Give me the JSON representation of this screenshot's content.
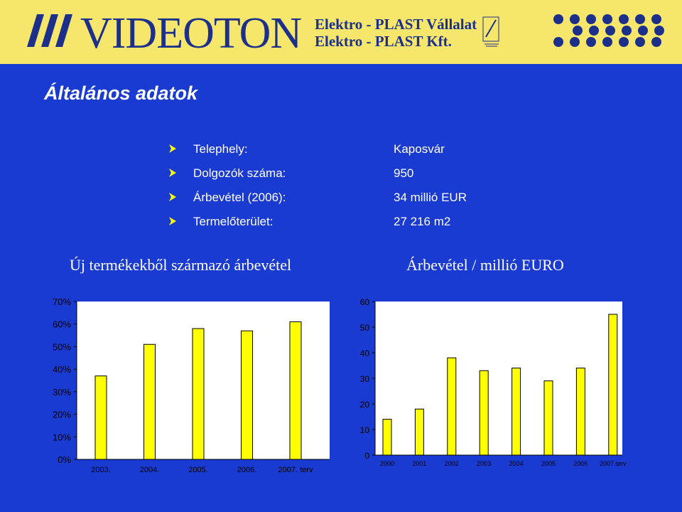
{
  "header": {
    "logo": "VIDEOTON",
    "company_line1": "Elektro - PLAST Vállalat",
    "company_line2": "Elektro - PLAST Kft.",
    "background_color": "#f6e76c",
    "logo_color": "#1c2f8a"
  },
  "page": {
    "title": "Általános adatok",
    "background_color": "#1a3bd1"
  },
  "facts": [
    {
      "label": "Telephely:",
      "value": "Kaposvár"
    },
    {
      "label": "Dolgozók száma:",
      "value": "950"
    },
    {
      "label": "Árbevétel (2006):",
      "value": "34 millió EUR"
    },
    {
      "label": "Termelőterület:",
      "value": "27 216 m2"
    }
  ],
  "chart_data": [
    {
      "type": "bar",
      "title": "Új termékekből származó árbevétel",
      "categories": [
        "2003.",
        "2004.",
        "2005.",
        "2006.",
        "2007. terv"
      ],
      "values": [
        37,
        51,
        58,
        57,
        61
      ],
      "ylim": [
        0,
        70
      ],
      "yticks": [
        "0%",
        "10%",
        "20%",
        "30%",
        "40%",
        "50%",
        "60%",
        "70%"
      ],
      "bar_color": "#ffff00",
      "plot_background": "#ffffff",
      "grid": false
    },
    {
      "type": "bar",
      "title": "Árbevétel / millió EURO",
      "categories": [
        "2000",
        "2001",
        "2002",
        "2003",
        "2004",
        "2005",
        "2006",
        "2007.terv"
      ],
      "values": [
        14,
        18,
        38,
        33,
        34,
        29,
        34,
        55
      ],
      "ylim": [
        0,
        60
      ],
      "yticks": [
        "0",
        "10",
        "20",
        "30",
        "40",
        "50",
        "60"
      ],
      "bar_color": "#ffff00",
      "plot_background": "#ffffff",
      "grid": false
    }
  ]
}
